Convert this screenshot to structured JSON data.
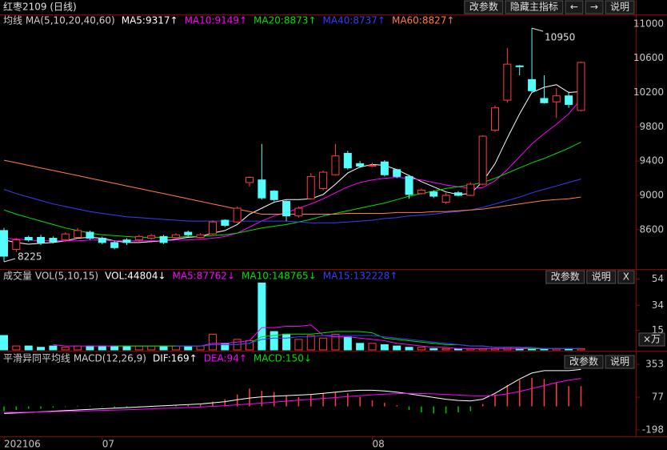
{
  "header": {
    "title": "红枣2109 (日线)",
    "buttons": [
      "改参数",
      "隐藏主指标",
      "←",
      "→",
      "说明"
    ]
  },
  "chart_data": [
    {
      "type": "candlestick",
      "title": "均线 MA(5,10,20,40,60)",
      "up_color": "#ff3c3c",
      "down_color": "#54fcfc",
      "ylim": [
        8150,
        11110
      ],
      "yticks": [
        8600,
        9000,
        9400,
        9800,
        10200,
        10600,
        11000
      ],
      "candles": {
        "open": [
          8590,
          8370,
          8510,
          8510,
          8500,
          8480,
          8510,
          8570,
          8500,
          8450,
          8480,
          8480,
          8500,
          8520,
          8510,
          8570,
          8510,
          8550,
          8710,
          8690,
          9150,
          9180,
          9050,
          8930,
          8760,
          8960,
          9080,
          9240,
          9490,
          9370,
          9340,
          9390,
          9300,
          9220,
          9020,
          9040,
          8920,
          9030,
          9000,
          9130,
          9760,
          10110,
          10510,
          10350,
          10130,
          10090,
          10160,
          9990
        ],
        "high": [
          8620,
          8500,
          8530,
          8540,
          8520,
          8570,
          8620,
          8590,
          8520,
          8470,
          8500,
          8540,
          8550,
          8540,
          8560,
          8590,
          8560,
          8710,
          8720,
          8870,
          9220,
          9600,
          9060,
          8940,
          8870,
          9260,
          9290,
          9600,
          9520,
          9400,
          9380,
          9410,
          9310,
          9240,
          9080,
          9060,
          9030,
          9050,
          9150,
          9700,
          10050,
          10720,
          10520,
          10950,
          10400,
          10250,
          10210,
          10560
        ],
        "low": [
          8225,
          8340,
          8460,
          8420,
          8440,
          8460,
          8500,
          8480,
          8430,
          8370,
          8420,
          8460,
          8480,
          8430,
          8500,
          8520,
          8500,
          8540,
          8630,
          8680,
          9100,
          8950,
          8930,
          8700,
          8740,
          8950,
          9060,
          9230,
          9300,
          9320,
          9330,
          9220,
          9200,
          8960,
          9010,
          8970,
          8900,
          8990,
          8990,
          9120,
          9740,
          10080,
          10400,
          10200,
          10070,
          9900,
          10020,
          9980
        ],
        "close": [
          8290,
          8480,
          8480,
          8450,
          8460,
          8550,
          8590,
          8500,
          8450,
          8390,
          8450,
          8520,
          8530,
          8450,
          8540,
          8540,
          8540,
          8690,
          8650,
          8850,
          9210,
          8970,
          8950,
          8760,
          8850,
          9220,
          9270,
          9460,
          9320,
          9340,
          9350,
          9240,
          9220,
          9010,
          9060,
          8990,
          9000,
          9000,
          9130,
          9690,
          10020,
          10530,
          10500,
          10220,
          10080,
          10160,
          10060,
          10550
        ]
      },
      "series": [
        {
          "name": "MA5:9317↑",
          "color": "#ffffff",
          "values": [
            8480,
            8450,
            8430,
            8440,
            8450,
            8470,
            8500,
            8510,
            8500,
            8470,
            8450,
            8450,
            8460,
            8470,
            8490,
            8510,
            8520,
            8560,
            8590,
            8660,
            8780,
            8850,
            8920,
            8950,
            8950,
            8960,
            9010,
            9130,
            9260,
            9330,
            9360,
            9350,
            9300,
            9230,
            9160,
            9100,
            9040,
            9010,
            9020,
            9160,
            9370,
            9670,
            9950,
            10200,
            10260,
            10290,
            10200,
            10210
          ]
        },
        {
          "name": "MA10:9149↑",
          "color": "#ff00ff",
          "values": [
            8500,
            8490,
            8480,
            8470,
            8470,
            8470,
            8470,
            8480,
            8480,
            8470,
            8470,
            8470,
            8470,
            8470,
            8480,
            8480,
            8490,
            8500,
            8520,
            8560,
            8630,
            8700,
            8760,
            8800,
            8850,
            8900,
            8960,
            9030,
            9100,
            9150,
            9180,
            9200,
            9210,
            9200,
            9180,
            9150,
            9120,
            9100,
            9080,
            9090,
            9170,
            9300,
            9450,
            9600,
            9720,
            9830,
            9950,
            10120
          ]
        },
        {
          "name": "MA20:8873↑",
          "color": "#00e000",
          "values": [
            8830,
            8780,
            8740,
            8700,
            8660,
            8620,
            8590,
            8560,
            8540,
            8530,
            8520,
            8510,
            8510,
            8510,
            8510,
            8520,
            8520,
            8530,
            8540,
            8560,
            8590,
            8620,
            8640,
            8660,
            8690,
            8720,
            8760,
            8790,
            8820,
            8850,
            8880,
            8910,
            8950,
            8990,
            9020,
            9050,
            9080,
            9100,
            9120,
            9150,
            9200,
            9260,
            9320,
            9380,
            9430,
            9490,
            9550,
            9620
          ]
        },
        {
          "name": "MA40:8737↑",
          "color": "#3b3bff",
          "values": [
            9070,
            9020,
            8980,
            8940,
            8900,
            8870,
            8840,
            8810,
            8790,
            8770,
            8750,
            8740,
            8730,
            8720,
            8710,
            8700,
            8700,
            8700,
            8700,
            8700,
            8700,
            8700,
            8700,
            8700,
            8690,
            8680,
            8680,
            8680,
            8690,
            8700,
            8710,
            8730,
            8740,
            8760,
            8770,
            8780,
            8800,
            8810,
            8830,
            8860,
            8900,
            8940,
            8980,
            9030,
            9070,
            9110,
            9150,
            9190
          ]
        },
        {
          "name": "MA60:8827↑",
          "color": "#ff8040",
          "values": [
            9410,
            9380,
            9350,
            9320,
            9290,
            9260,
            9230,
            9200,
            9170,
            9140,
            9110,
            9080,
            9050,
            9020,
            8990,
            8960,
            8930,
            8900,
            8870,
            8840,
            8810,
            8780,
            8780,
            8780,
            8780,
            8780,
            8780,
            8780,
            8790,
            8790,
            8790,
            8790,
            8800,
            8800,
            8800,
            8810,
            8810,
            8820,
            8830,
            8840,
            8860,
            8880,
            8900,
            8920,
            8940,
            8950,
            8960,
            8980
          ]
        }
      ],
      "annotations": [
        {
          "x": 43,
          "y": 10950
        },
        {
          "x": 0,
          "y": 8225
        }
      ]
    },
    {
      "type": "volume",
      "title": "成交量 VOL(5,10,15)",
      "buttons": [
        "改参数",
        "说明",
        "X"
      ],
      "unit_label": "×万",
      "up_color": "#ff3c3c",
      "down_color": "#54fcfc",
      "ylim": [
        0,
        61
      ],
      "yticks": [
        15,
        34,
        54
      ],
      "bars": {
        "name": "VOL:44804↓",
        "color": "#ffffff",
        "values": [
          11,
          3,
          3,
          2,
          3,
          2,
          3,
          3,
          3,
          3,
          3,
          3,
          3,
          3,
          3,
          3,
          3,
          12,
          5,
          8,
          7,
          51,
          14,
          12,
          8,
          11,
          9,
          12,
          10,
          5,
          5,
          4,
          3,
          2,
          2,
          1,
          1,
          1,
          1,
          1,
          1,
          2,
          1,
          1,
          1,
          1,
          1,
          1
        ]
      },
      "series": [
        {
          "name": "MA5:87762↓",
          "color": "#ff00ff",
          "values": [
            null,
            null,
            null,
            null,
            4,
            3,
            3,
            3,
            3,
            3,
            3,
            3,
            3,
            3,
            3,
            3,
            3,
            5,
            5,
            6,
            7,
            17,
            17,
            18,
            18,
            19,
            11,
            10,
            10,
            9,
            8,
            7,
            5,
            4,
            3,
            2,
            2,
            1,
            1,
            1,
            1,
            1,
            1,
            1,
            1,
            1,
            1,
            1
          ]
        },
        {
          "name": "MA10:148765↓",
          "color": "#00e000",
          "values": [
            null,
            null,
            null,
            null,
            null,
            null,
            null,
            null,
            null,
            3,
            3,
            3,
            3,
            3,
            3,
            3,
            3,
            4,
            4,
            4,
            5,
            10,
            11,
            12,
            12,
            12,
            13,
            14,
            14,
            14,
            13,
            9,
            8,
            7,
            6,
            5,
            4,
            4,
            3,
            3,
            2,
            2,
            2,
            1,
            1,
            1,
            1,
            1
          ]
        },
        {
          "name": "MA15:132228↑",
          "color": "#3b3bff",
          "values": [
            null,
            null,
            null,
            null,
            null,
            null,
            null,
            null,
            null,
            null,
            null,
            null,
            null,
            null,
            3,
            3,
            3,
            4,
            4,
            4,
            5,
            8,
            9,
            9,
            10,
            10,
            11,
            11,
            11,
            11,
            11,
            10,
            9,
            8,
            7,
            6,
            5,
            4,
            3,
            3,
            2,
            2,
            2,
            2,
            1,
            1,
            1,
            1
          ]
        }
      ]
    },
    {
      "type": "macd",
      "title": "平滑异同平均线 MACD(12,26,9)",
      "buttons": [
        "改参数",
        "说明"
      ],
      "up_color": "#ff3c3c",
      "down_color": "#00c000",
      "ylim": [
        -252,
        454
      ],
      "yticks": [
        -198,
        77,
        353
      ],
      "categories": [
        "202106",
        null,
        null,
        null,
        null,
        null,
        null,
        null,
        "07",
        null,
        null,
        null,
        null,
        null,
        null,
        null,
        null,
        null,
        null,
        null,
        null,
        null,
        null,
        null,
        null,
        null,
        null,
        null,
        null,
        null,
        "08",
        null,
        null,
        null,
        null,
        null,
        null,
        null,
        null,
        null,
        null,
        null,
        null,
        null,
        null,
        null,
        null,
        null
      ],
      "series": [
        {
          "name": "DIF:169↑",
          "color": "#ffffff",
          "values": [
            -60,
            -55,
            -50,
            -45,
            -40,
            -35,
            -30,
            -25,
            -20,
            -15,
            -10,
            -5,
            0,
            5,
            10,
            15,
            20,
            30,
            40,
            55,
            70,
            80,
            85,
            90,
            95,
            100,
            110,
            120,
            130,
            135,
            135,
            130,
            120,
            105,
            90,
            75,
            60,
            50,
            45,
            60,
            110,
            170,
            230,
            280,
            300,
            300,
            300,
            310
          ]
        },
        {
          "name": "DEA:94↑",
          "color": "#ff00ff",
          "values": [
            -50,
            -50,
            -48,
            -46,
            -44,
            -42,
            -40,
            -37,
            -34,
            -31,
            -28,
            -25,
            -21,
            -17,
            -13,
            -9,
            -5,
            0,
            6,
            13,
            20,
            28,
            36,
            44,
            52,
            60,
            67,
            74,
            82,
            90,
            97,
            103,
            107,
            109,
            108,
            105,
            100,
            95,
            90,
            88,
            92,
            105,
            125,
            150,
            175,
            200,
            220,
            235
          ]
        }
      ],
      "bars": {
        "name": "MACD:150↓",
        "color": "#00e000",
        "values": [
          -40,
          -30,
          -20,
          -20,
          -10,
          -5,
          5,
          5,
          -5,
          -10,
          -10,
          -5,
          5,
          5,
          10,
          10,
          15,
          40,
          60,
          100,
          150,
          130,
          120,
          90,
          80,
          100,
          110,
          120,
          110,
          80,
          50,
          30,
          10,
          -30,
          -50,
          -60,
          -60,
          -50,
          -40,
          20,
          100,
          180,
          220,
          240,
          230,
          200,
          170,
          170
        ]
      }
    }
  ]
}
